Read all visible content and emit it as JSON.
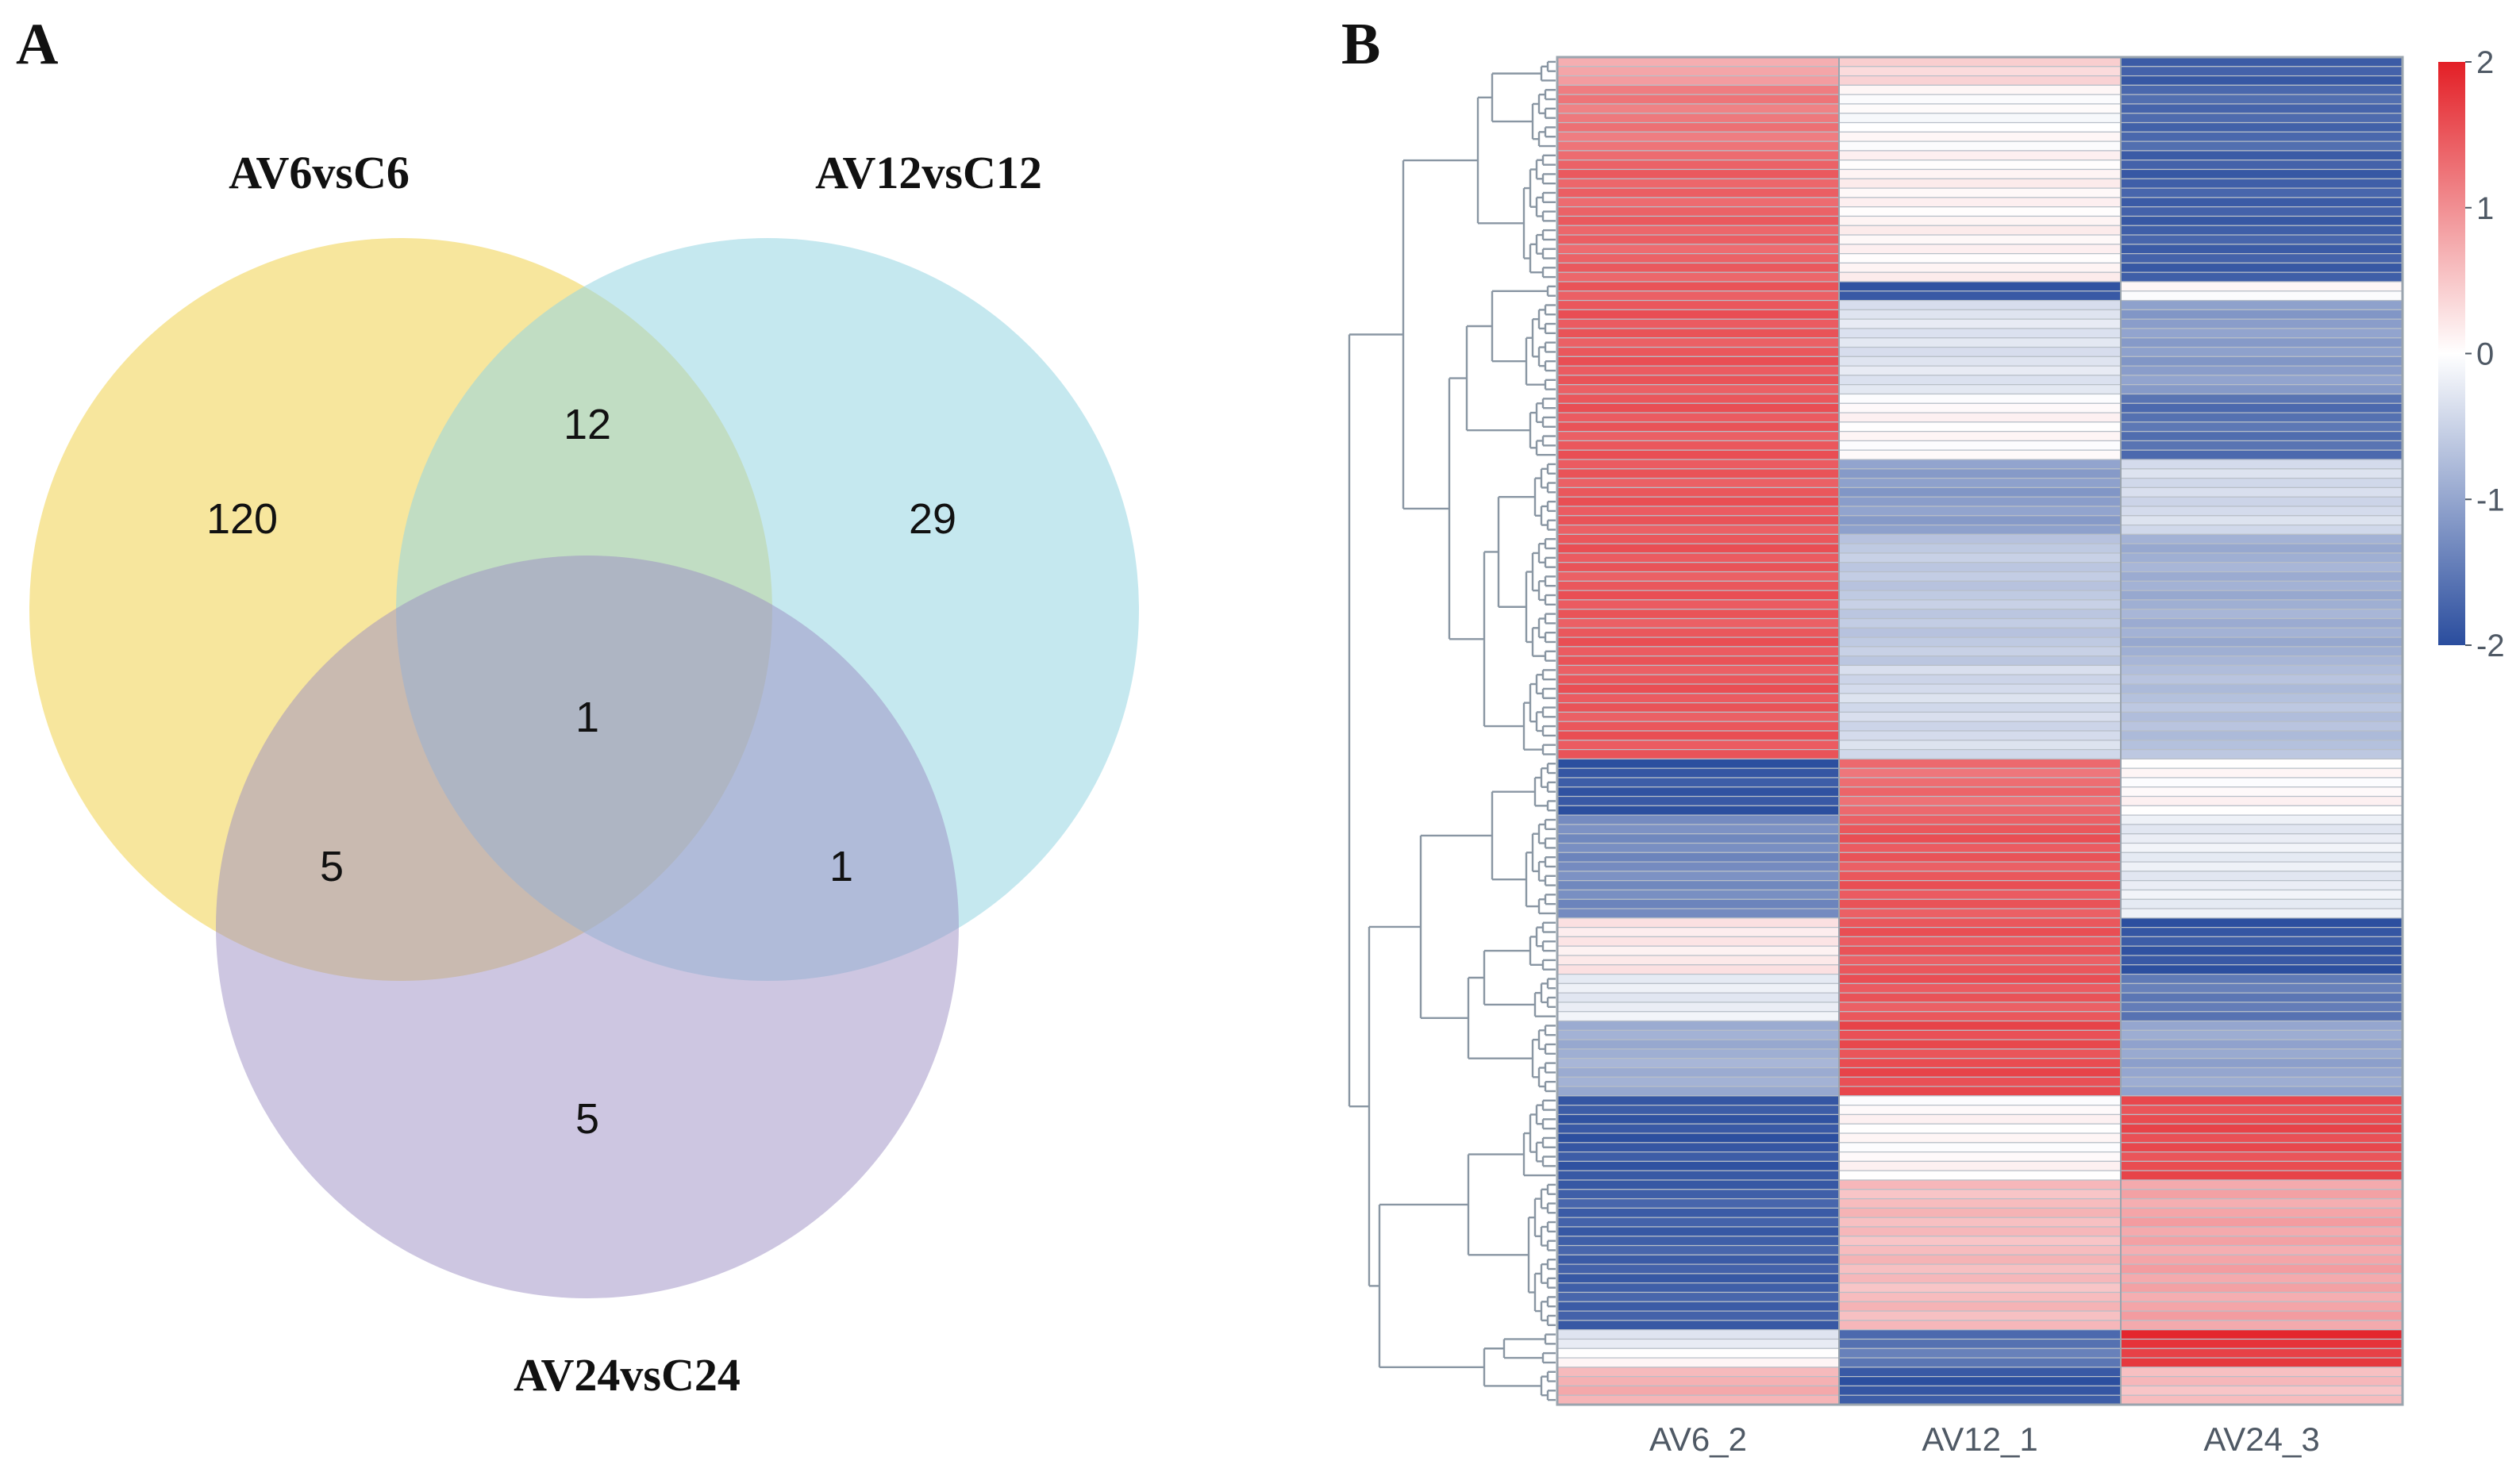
{
  "panels": {
    "a": "A",
    "b": "B"
  },
  "chart_data": [
    {
      "type": "venn",
      "panel": "A",
      "sets": [
        {
          "name": "AV6vsC6",
          "color": "#f4dd7c"
        },
        {
          "name": "AV12vsC12",
          "color": "#96d5e1"
        },
        {
          "name": "AV24vsC24",
          "color": "#9b8dc4"
        }
      ],
      "regions": {
        "AV6vsC6_only": 120,
        "AV12vsC12_only": 29,
        "AV24vsC24_only": 5,
        "AV6vsC6_AV12vsC12": 12,
        "AV6vsC6_AV24vsC24": 5,
        "AV12vsC12_AV24vsC24": 1,
        "all_three": 1
      }
    },
    {
      "type": "heatmap",
      "panel": "B",
      "columns": [
        "AV6_2",
        "AV12_1",
        "AV24_3"
      ],
      "row_dendrogram": true,
      "colorbar": {
        "ticks": [
          2,
          1,
          0,
          -1,
          -2
        ],
        "range": [
          -2,
          2
        ],
        "low_color": "#2a4d9e",
        "mid_color": "#ffffff",
        "high_color": "#e31f26"
      },
      "row_blocks": [
        {
          "rows": 3,
          "values": [
            0.8,
            0.4,
            -1.8
          ]
        },
        {
          "rows": 7,
          "values": [
            1.2,
            0.0,
            -1.7
          ]
        },
        {
          "rows": 14,
          "values": [
            1.4,
            0.1,
            -1.8
          ]
        },
        {
          "rows": 2,
          "values": [
            1.5,
            -1.9,
            0.0
          ]
        },
        {
          "rows": 10,
          "values": [
            1.5,
            -0.3,
            -1.1
          ]
        },
        {
          "rows": 7,
          "values": [
            1.5,
            0.05,
            -1.6
          ]
        },
        {
          "rows": 8,
          "values": [
            1.5,
            -1.1,
            -0.4
          ]
        },
        {
          "rows": 14,
          "values": [
            1.5,
            -0.6,
            -0.9
          ]
        },
        {
          "rows": 10,
          "values": [
            1.5,
            -0.4,
            -0.7
          ]
        },
        {
          "rows": 6,
          "values": [
            -1.9,
            1.3,
            0.05
          ]
        },
        {
          "rows": 11,
          "values": [
            -1.3,
            1.5,
            -0.2
          ]
        },
        {
          "rows": 6,
          "values": [
            0.2,
            1.5,
            -1.9
          ]
        },
        {
          "rows": 5,
          "values": [
            -0.2,
            1.5,
            -1.5
          ]
        },
        {
          "rows": 8,
          "values": [
            -0.9,
            1.6,
            -1.0
          ]
        },
        {
          "rows": 9,
          "values": [
            -1.9,
            0.05,
            1.6
          ]
        },
        {
          "rows": 16,
          "values": [
            -1.8,
            0.6,
            0.8
          ]
        },
        {
          "rows": 2,
          "values": [
            -0.3,
            -1.6,
            1.9
          ]
        },
        {
          "rows": 2,
          "values": [
            0.05,
            -1.5,
            1.7
          ]
        },
        {
          "rows": 4,
          "values": [
            0.7,
            -1.9,
            0.6
          ]
        }
      ]
    }
  ]
}
